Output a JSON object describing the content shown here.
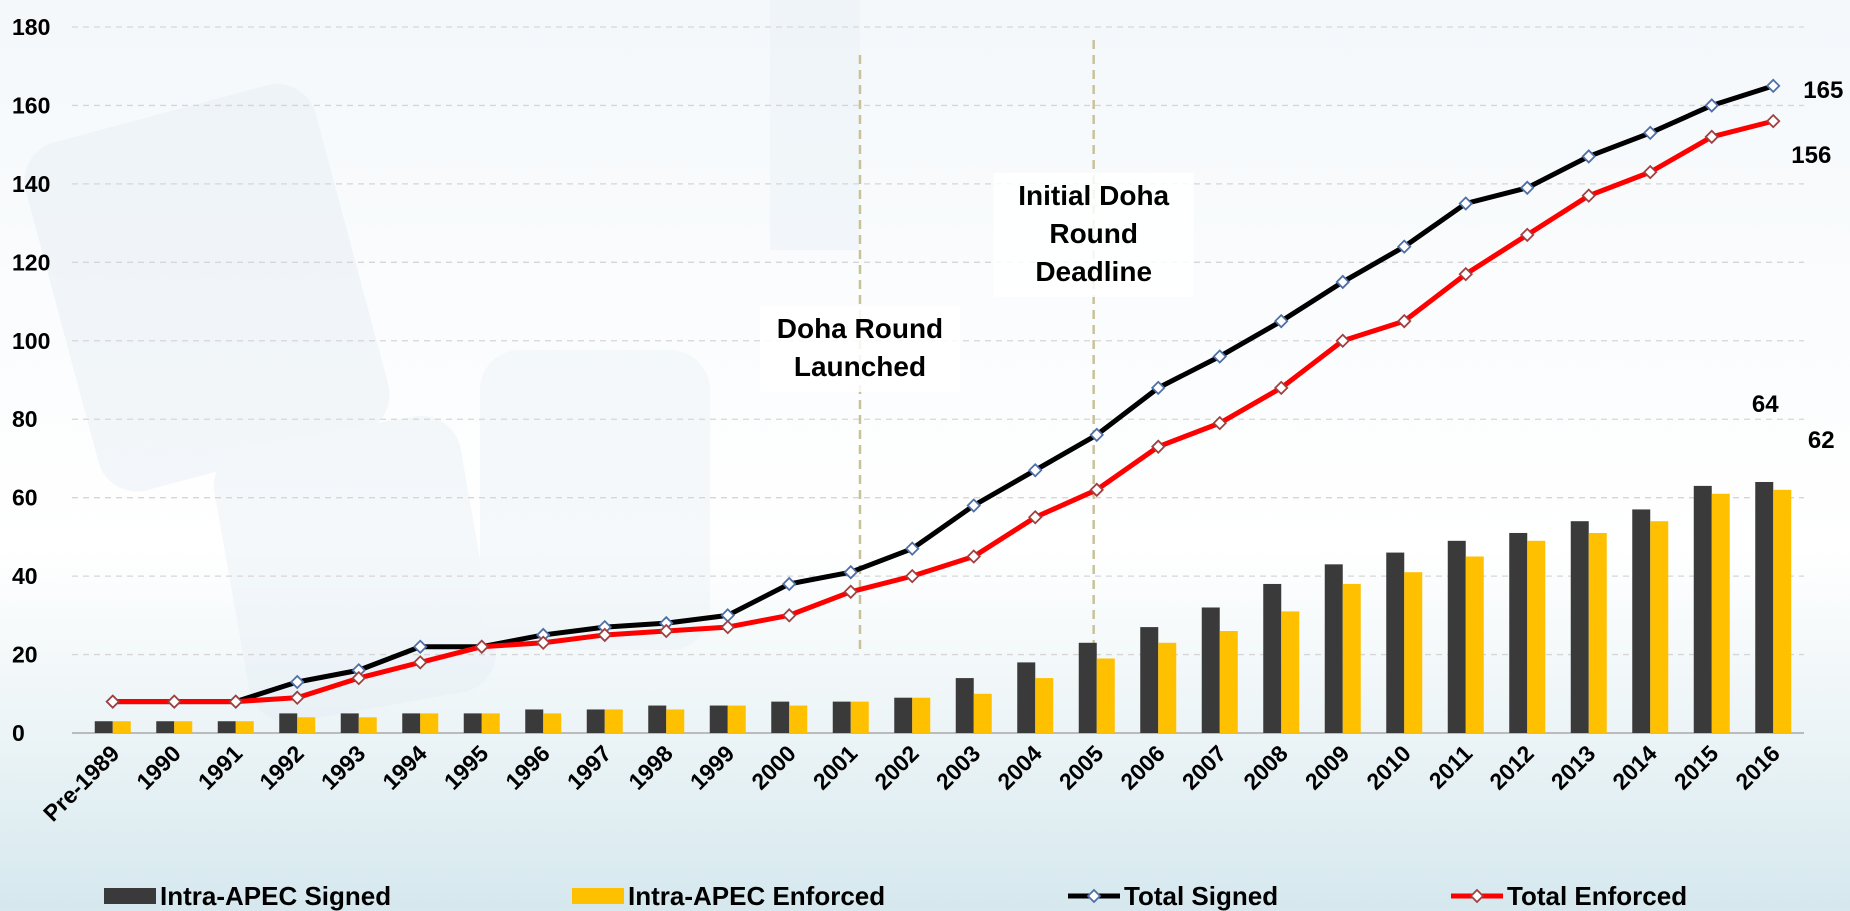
{
  "chart_data": {
    "type": "bar_line",
    "categories": [
      "Pre-1989",
      "1990",
      "1991",
      "1992",
      "1993",
      "1994",
      "1995",
      "1996",
      "1997",
      "1998",
      "1999",
      "2000",
      "2001",
      "2002",
      "2003",
      "2004",
      "2005",
      "2006",
      "2007",
      "2008",
      "2009",
      "2010",
      "2011",
      "2012",
      "2013",
      "2014",
      "2015",
      "2016"
    ],
    "series": [
      {
        "name": "Intra-APEC Signed",
        "kind": "bar",
        "color": "#3a3a3a",
        "values": [
          3,
          3,
          3,
          5,
          5,
          5,
          5,
          6,
          6,
          7,
          7,
          8,
          8,
          9,
          14,
          18,
          23,
          27,
          32,
          38,
          43,
          46,
          49,
          51,
          54,
          57,
          63,
          64
        ]
      },
      {
        "name": "Intra-APEC Enforced",
        "kind": "bar",
        "color": "#ffc000",
        "values": [
          3,
          3,
          3,
          4,
          4,
          5,
          5,
          5,
          6,
          6,
          7,
          7,
          8,
          9,
          10,
          14,
          19,
          23,
          26,
          31,
          38,
          41,
          45,
          49,
          51,
          54,
          61,
          62
        ]
      },
      {
        "name": "Total Signed",
        "kind": "line",
        "color": "#000000",
        "marker_color": "#4f6fa8",
        "values": [
          8,
          8,
          8,
          13,
          16,
          22,
          22,
          25,
          27,
          28,
          30,
          38,
          41,
          47,
          58,
          67,
          76,
          88,
          96,
          105,
          115,
          124,
          135,
          139,
          147,
          153,
          160,
          165
        ]
      },
      {
        "name": "Total Enforced",
        "kind": "line",
        "color": "#ff0000",
        "marker_color": "#a04040",
        "values": [
          8,
          8,
          8,
          9,
          14,
          18,
          22,
          23,
          25,
          26,
          27,
          30,
          36,
          40,
          45,
          55,
          62,
          73,
          79,
          88,
          100,
          105,
          117,
          127,
          137,
          143,
          152,
          156
        ]
      }
    ],
    "annotations": [
      {
        "lines": [
          "Doha Round",
          "Launched"
        ]
      },
      {
        "lines": [
          "Initial Doha",
          "Round",
          "Deadline"
        ]
      }
    ],
    "ylim": [
      0,
      180
    ],
    "yticks": [
      0,
      20,
      40,
      60,
      80,
      100,
      120,
      140,
      160,
      180
    ],
    "grid": true,
    "legend": "bottom"
  }
}
